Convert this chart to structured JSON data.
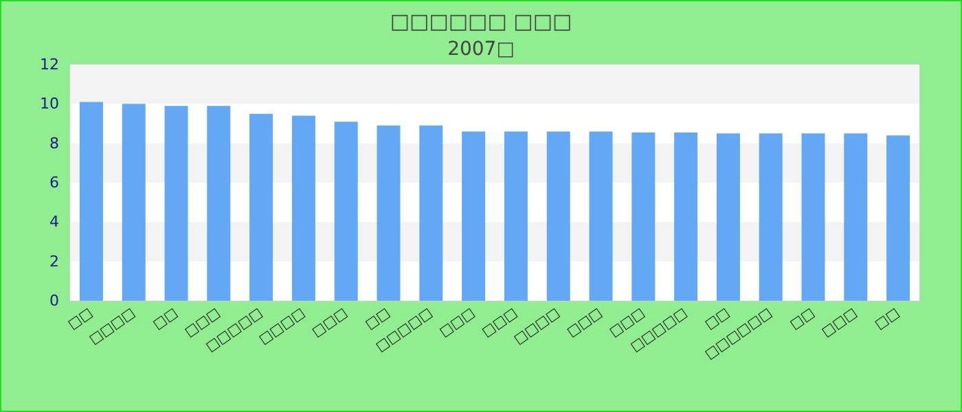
{
  "chart_data": {
    "type": "bar",
    "title": "□□□□□□ □□□",
    "subtitle": "2007□",
    "categories": [
      "□□",
      "□□□□",
      "□□",
      "□□□",
      "□□□□□",
      "□□□□",
      "□□□",
      "□□",
      "□□□□□",
      "□□□",
      "□□□",
      "□□□□",
      "□□□",
      "□□□",
      "□□□□□",
      "□□",
      "□□□□□□",
      "□□",
      "□□□",
      "□□"
    ],
    "values": [
      10.1,
      10.0,
      9.9,
      9.9,
      9.5,
      9.4,
      9.1,
      8.9,
      8.9,
      8.6,
      8.6,
      8.6,
      8.6,
      8.55,
      8.55,
      8.5,
      8.5,
      8.5,
      8.5,
      8.4
    ],
    "color": "#62a8f4",
    "ylim": [
      0,
      12
    ],
    "yticks": [
      0,
      2,
      4,
      6,
      8,
      10,
      12
    ]
  }
}
